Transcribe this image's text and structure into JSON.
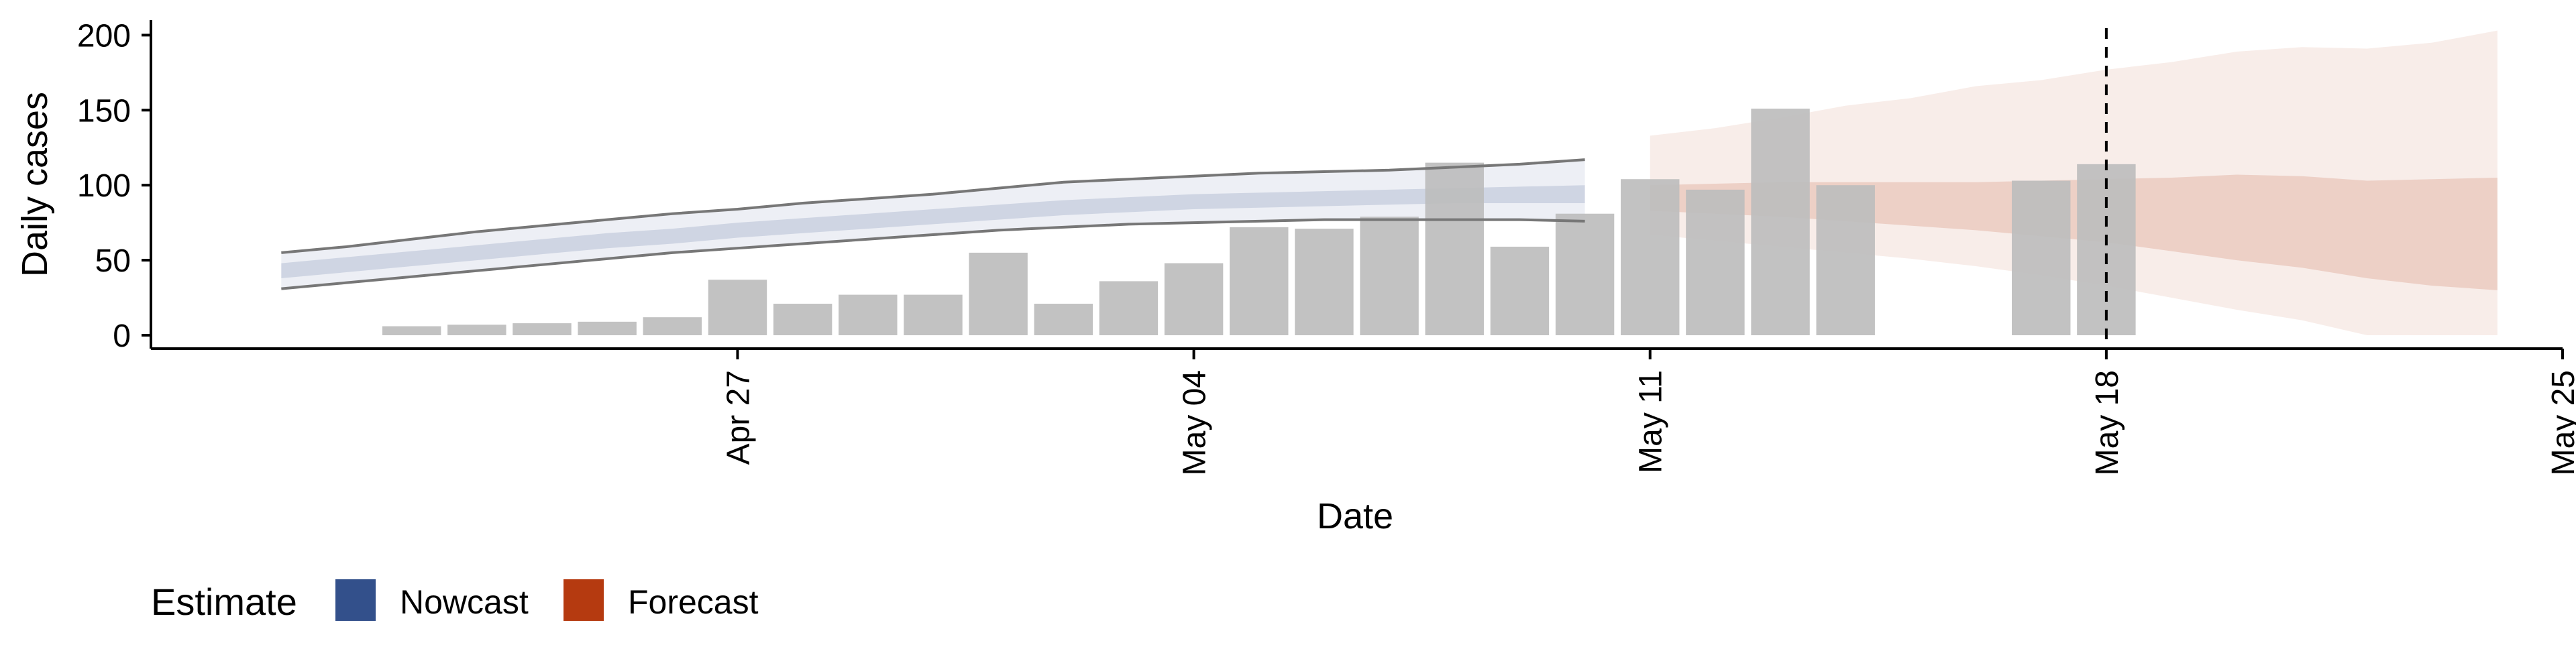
{
  "chart_data": {
    "type": "bar",
    "xlabel": "Date",
    "ylabel": "Daily cases",
    "xlim": [
      "2020-04-18",
      "2020-05-25"
    ],
    "ylim": [
      0,
      210
    ],
    "x_ticks": [
      {
        "date": "2020-04-27",
        "label": "Apr 27"
      },
      {
        "date": "2020-05-04",
        "label": "May 04"
      },
      {
        "date": "2020-05-11",
        "label": "May 11"
      },
      {
        "date": "2020-05-18",
        "label": "May 18"
      },
      {
        "date": "2020-05-25",
        "label": "May 25"
      }
    ],
    "y_ticks": [
      0,
      50,
      100,
      150,
      200
    ],
    "grid": false,
    "reference_line": {
      "date": "2020-05-18",
      "style": "dashed"
    },
    "observed_cases": {
      "dates": [
        "2020-04-22",
        "2020-04-23",
        "2020-04-24",
        "2020-04-25",
        "2020-04-26",
        "2020-04-27",
        "2020-04-28",
        "2020-04-29",
        "2020-04-30",
        "2020-05-01",
        "2020-05-02",
        "2020-05-03",
        "2020-05-04",
        "2020-05-05",
        "2020-05-06",
        "2020-05-07",
        "2020-05-08",
        "2020-05-09",
        "2020-05-10",
        "2020-05-11",
        "2020-05-12",
        "2020-05-13",
        "2020-05-14",
        "2020-05-15",
        "2020-05-17",
        "2020-05-18"
      ],
      "values": [
        6,
        7,
        8,
        9,
        12,
        37,
        21,
        27,
        27,
        55,
        21,
        36,
        48,
        72,
        71,
        79,
        115,
        59,
        81,
        104,
        97,
        151,
        100,
        0,
        103,
        114
      ],
      "color": "#bdbdbd"
    },
    "series": [
      {
        "name": "Nowcast",
        "color": "#33508b",
        "dates": [
          "2020-04-20",
          "2020-04-21",
          "2020-04-22",
          "2020-04-23",
          "2020-04-24",
          "2020-04-25",
          "2020-04-26",
          "2020-04-27",
          "2020-04-28",
          "2020-04-29",
          "2020-04-30",
          "2020-05-01",
          "2020-05-02",
          "2020-05-03",
          "2020-05-04",
          "2020-05-05",
          "2020-05-06",
          "2020-05-07",
          "2020-05-08",
          "2020-05-09",
          "2020-05-10"
        ],
        "lower_90": [
          31,
          35,
          39,
          43,
          47,
          51,
          55,
          58,
          61,
          64,
          67,
          70,
          72,
          74,
          75,
          76,
          77,
          77,
          77,
          77,
          76
        ],
        "upper_90": [
          55,
          59,
          64,
          69,
          73,
          77,
          81,
          84,
          88,
          91,
          94,
          98,
          102,
          104,
          106,
          108,
          109,
          110,
          112,
          114,
          117
        ],
        "lower_50": [
          38,
          42,
          46,
          50,
          54,
          58,
          61,
          65,
          68,
          71,
          74,
          77,
          80,
          82,
          84,
          85,
          86,
          87,
          88,
          88,
          88
        ],
        "upper_50": [
          48,
          52,
          56,
          60,
          64,
          68,
          71,
          75,
          78,
          81,
          84,
          87,
          90,
          92,
          94,
          95,
          96,
          97,
          98,
          99,
          100
        ]
      },
      {
        "name": "Forecast",
        "color": "#b53a10",
        "dates": [
          "2020-05-11",
          "2020-05-12",
          "2020-05-13",
          "2020-05-14",
          "2020-05-15",
          "2020-05-16",
          "2020-05-17",
          "2020-05-18",
          "2020-05-19",
          "2020-05-20",
          "2020-05-21",
          "2020-05-22",
          "2020-05-23",
          "2020-05-24"
        ],
        "lower_90": [
          67,
          63,
          59,
          55,
          51,
          46,
          40,
          33,
          25,
          17,
          10,
          0,
          0,
          0
        ],
        "upper_90": [
          133,
          138,
          145,
          153,
          158,
          166,
          170,
          177,
          182,
          189,
          192,
          191,
          195,
          203
        ],
        "lower_50": [
          83,
          81,
          79,
          76,
          73,
          70,
          66,
          62,
          56,
          50,
          45,
          38,
          33,
          30
        ],
        "upper_50": [
          100,
          101,
          102,
          102,
          102,
          102,
          103,
          104,
          105,
          107,
          106,
          103,
          104,
          105
        ]
      }
    ],
    "legend": {
      "title": "Estimate",
      "position": "bottom-left",
      "entries": [
        "Nowcast",
        "Forecast"
      ]
    }
  }
}
